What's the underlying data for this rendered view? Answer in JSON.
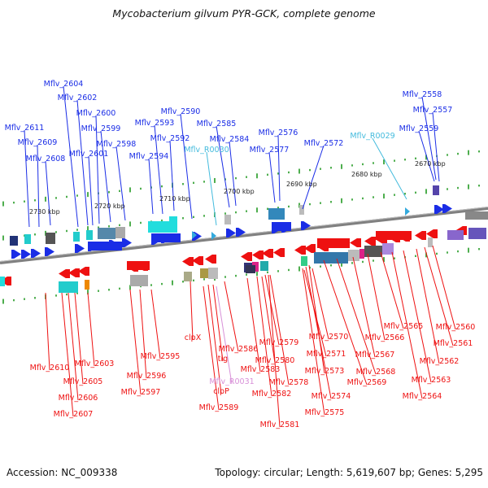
{
  "title": "Mycobacterium gilvum PYR-GCK, complete genome",
  "footer": {
    "accession": "Accession: NC_009338",
    "stats": "Topology: circular; Length: 5,619,607 bp; Genes: 5,295"
  },
  "colors": {
    "forward_gene": "#1a2de6",
    "reverse_gene": "#ee1111",
    "trna_label": "#44bbdd",
    "rna_label_reverse": "#d890d8",
    "tick": "#229922",
    "backbone": "#808080"
  },
  "scale_labels": [
    "2730 kbp",
    "2720 kbp",
    "2710 kbp",
    "2700 kbp",
    "2690 kbp",
    "2680 kbp",
    "2670 kbp"
  ],
  "top_labels": [
    "Mflv_2604",
    "Mflv_2602",
    "Mflv_2600",
    "Mflv_2611",
    "Mflv_2599",
    "Mflv_2609",
    "Mflv_2598",
    "Mflv_2601",
    "Mflv_2608",
    "Mflv_2590",
    "Mflv_2593",
    "Mflv_2585",
    "Mflv_2592",
    "Mflv_2584",
    "Mflv_R0030",
    "Mflv_2594",
    "Mflv_2576",
    "Mflv_2577",
    "Mflv_2572",
    "Mflv_R0029",
    "Mflv_2558",
    "Mflv_2557",
    "Mflv_2559"
  ],
  "bottom_labels": [
    "clpX",
    "Mflv_2586",
    "tig",
    "Mflv_2579",
    "Mflv_2570",
    "Mflv_2571",
    "Mflv_2580",
    "Mflv_2583",
    "Mflv_2578",
    "Mflv_R0031",
    "clpP",
    "Mflv_2582",
    "Mflv_2581",
    "Mflv_2589",
    "Mflv_2573",
    "Mflv_2574",
    "Mflv_2575",
    "Mflv_2569",
    "Mflv_2568",
    "Mflv_2567",
    "Mflv_2566",
    "Mflv_2565",
    "Mflv_2564",
    "Mflv_2563",
    "Mflv_2562",
    "Mflv_2561",
    "Mflv_2560",
    "Mflv_2610",
    "Mflv_2603",
    "Mflv_2605",
    "Mflv_2606",
    "Mflv_2607",
    "Mflv_2595",
    "Mflv_2596",
    "Mflv_2597"
  ]
}
